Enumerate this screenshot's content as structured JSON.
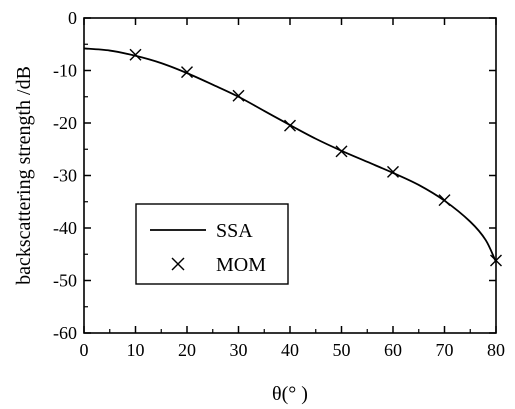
{
  "chart_data": {
    "type": "line",
    "title": "",
    "xlabel": "θ(° )",
    "ylabel": "backscattering strength /dB",
    "xlim": [
      0,
      80
    ],
    "ylim": [
      -60,
      0
    ],
    "xticks": [
      0,
      10,
      20,
      30,
      40,
      50,
      60,
      70,
      80
    ],
    "yticks": [
      0,
      -10,
      -20,
      -30,
      -40,
      -50,
      -60
    ],
    "grid": false,
    "legend_position": "lower-left",
    "series": [
      {
        "name": "SSA",
        "style": "line",
        "color": "#000000",
        "x": [
          0,
          5,
          10,
          15,
          20,
          25,
          30,
          35,
          40,
          45,
          50,
          55,
          60,
          65,
          70,
          75,
          78,
          80
        ],
        "y": [
          -5.8,
          -6.2,
          -7.2,
          -8.6,
          -10.5,
          -12.7,
          -15.0,
          -17.7,
          -20.4,
          -23.0,
          -25.3,
          -27.4,
          -29.5,
          -31.8,
          -34.8,
          -38.8,
          -42.3,
          -46.5
        ]
      },
      {
        "name": "MOM",
        "style": "marker-x",
        "color": "#000000",
        "x": [
          10,
          20,
          30,
          40,
          50,
          60,
          70,
          80
        ],
        "y": [
          -7.0,
          -10.3,
          -14.8,
          -20.5,
          -25.4,
          -29.3,
          -34.7,
          -46.2
        ]
      }
    ]
  }
}
